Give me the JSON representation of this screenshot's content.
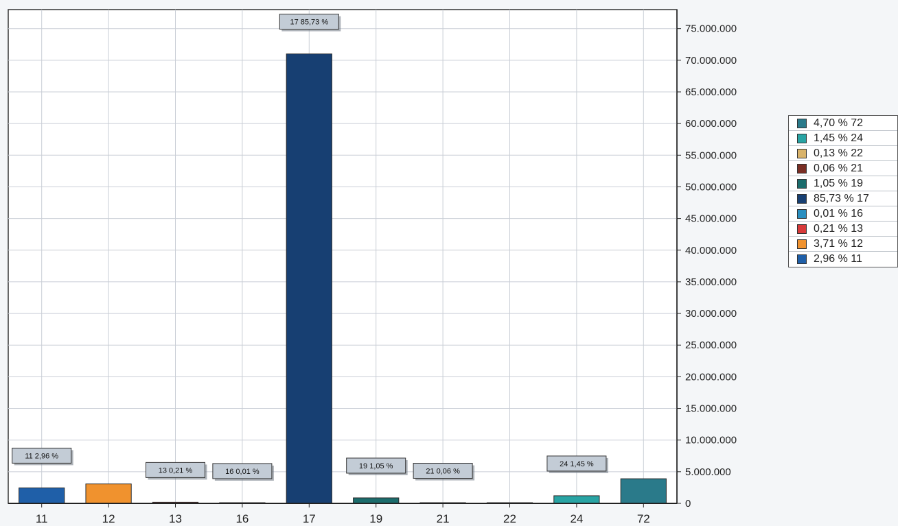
{
  "chart_data": {
    "type": "bar",
    "categories": [
      "11",
      "12",
      "13",
      "16",
      "17",
      "19",
      "21",
      "22",
      "24",
      "72"
    ],
    "values": [
      2450000,
      3070000,
      175000,
      8000,
      71000000,
      870000,
      50000,
      107000,
      1200000,
      3890000
    ],
    "colors": [
      "#1f5fa8",
      "#f0922e",
      "#d83a3a",
      "#2a8fc0",
      "#173f72",
      "#1b6c6c",
      "#7a2e24",
      "#d9b36a",
      "#28a4a4",
      "#2a7a8a"
    ],
    "data_labels": [
      "11 2,96 %",
      "",
      "13 0,21 %",
      "16 0,01 %",
      "17 85,73 %",
      "19 1,05 %",
      "21 0,06 %",
      "",
      "24 1,45 %",
      ""
    ],
    "ylim": [
      0,
      78000000
    ],
    "yticks": [
      0,
      5000000,
      10000000,
      15000000,
      20000000,
      25000000,
      30000000,
      35000000,
      40000000,
      45000000,
      50000000,
      55000000,
      60000000,
      65000000,
      70000000,
      75000000
    ],
    "ytick_labels": [
      "0",
      "5.000.000",
      "10.000.000",
      "15.000.000",
      "20.000.000",
      "25.000.000",
      "30.000.000",
      "35.000.000",
      "40.000.000",
      "45.000.000",
      "50.000.000",
      "55.000.000",
      "60.000.000",
      "65.000.000",
      "70.000.000",
      "75.000.000"
    ],
    "y_axis_side": "right",
    "grid": true,
    "legend_position": "right",
    "legend": [
      {
        "label": "4,70 % 72",
        "color": "#2a7a8a"
      },
      {
        "label": "1,45 % 24",
        "color": "#28a4a4"
      },
      {
        "label": "0,13 % 22",
        "color": "#d9b36a"
      },
      {
        "label": "0,06 % 21",
        "color": "#7a2e24"
      },
      {
        "label": "1,05 % 19",
        "color": "#1b6c6c"
      },
      {
        "label": "85,73 % 17",
        "color": "#173f72"
      },
      {
        "label": "0,01 % 16",
        "color": "#2a8fc0"
      },
      {
        "label": "0,21 % 13",
        "color": "#d83a3a"
      },
      {
        "label": "3,71 % 12",
        "color": "#f0922e"
      },
      {
        "label": "2,96 % 11",
        "color": "#1f5fa8"
      }
    ]
  }
}
